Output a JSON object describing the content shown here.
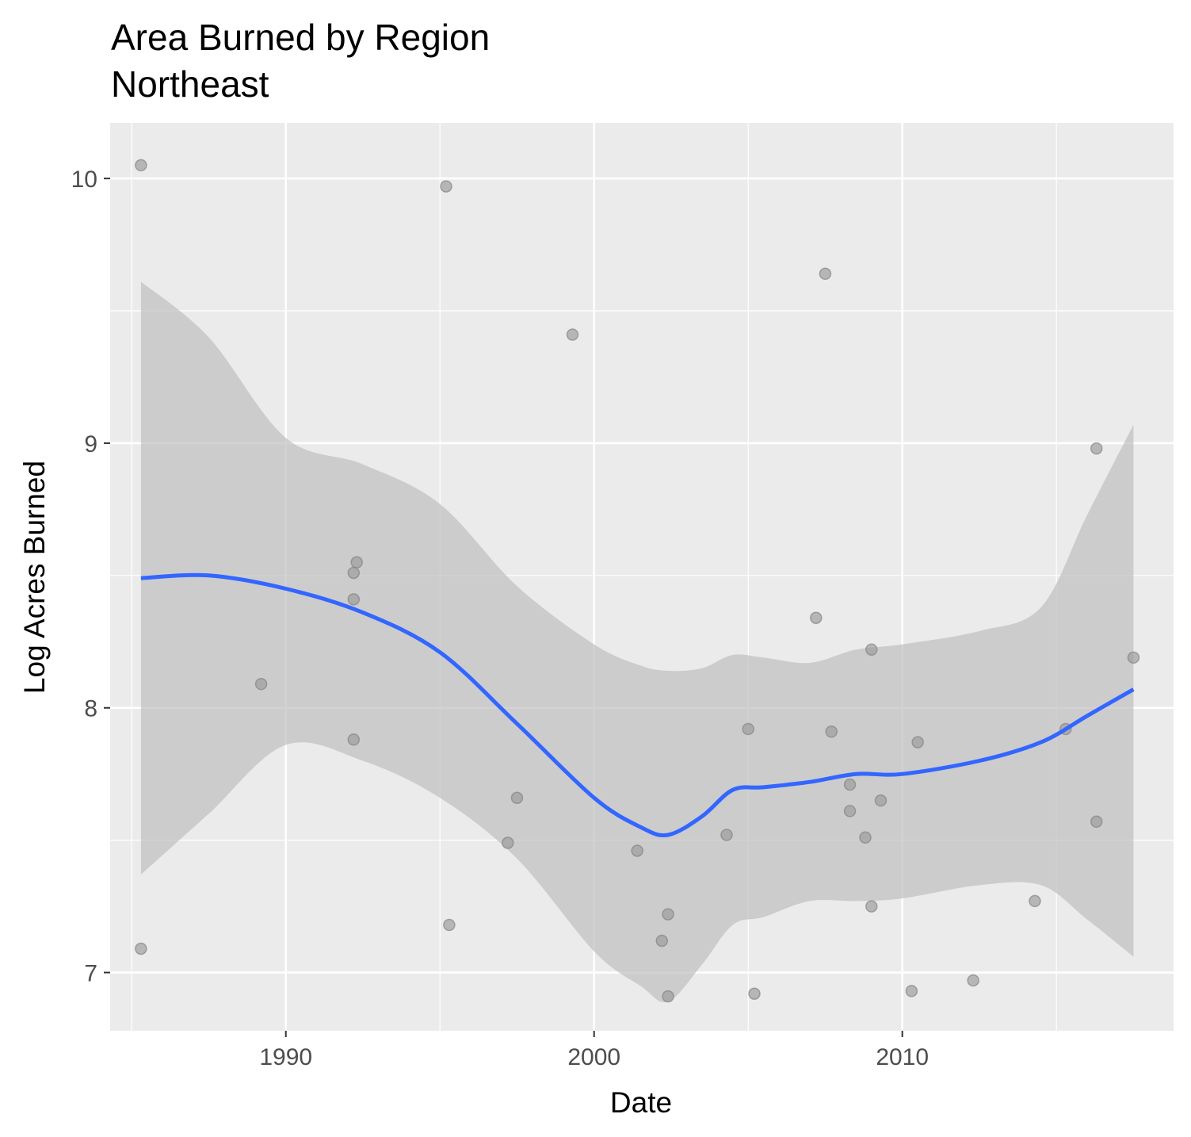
{
  "chart_data": {
    "type": "scatter",
    "title": "Area Burned by Region",
    "subtitle": "Northeast",
    "xlabel": "Date",
    "ylabel": "Log Acres Burned",
    "xlim": [
      1984.3,
      2018.8
    ],
    "ylim": [
      6.78,
      10.21
    ],
    "x_ticks": [
      1990,
      2000,
      2010
    ],
    "y_ticks": [
      7,
      8,
      9,
      10
    ],
    "grid": true,
    "colors": {
      "panel": "#ebebeb",
      "grid_major": "#ffffff",
      "points": "#999999",
      "smooth_line": "#3366ff",
      "ribbon": "#bdbdbd"
    },
    "points": [
      {
        "x": 1985.3,
        "y": 10.05
      },
      {
        "x": 1985.3,
        "y": 7.09
      },
      {
        "x": 1989.2,
        "y": 8.09
      },
      {
        "x": 1992.3,
        "y": 8.55
      },
      {
        "x": 1992.2,
        "y": 8.51
      },
      {
        "x": 1992.2,
        "y": 8.41
      },
      {
        "x": 1992.2,
        "y": 7.88
      },
      {
        "x": 1995.2,
        "y": 9.97
      },
      {
        "x": 1995.3,
        "y": 7.18
      },
      {
        "x": 1997.2,
        "y": 7.49
      },
      {
        "x": 1997.5,
        "y": 7.66
      },
      {
        "x": 1999.3,
        "y": 9.41
      },
      {
        "x": 2001.4,
        "y": 7.46
      },
      {
        "x": 2002.2,
        "y": 7.12
      },
      {
        "x": 2002.4,
        "y": 7.22
      },
      {
        "x": 2002.4,
        "y": 6.91
      },
      {
        "x": 2004.3,
        "y": 7.52
      },
      {
        "x": 2005.0,
        "y": 7.92
      },
      {
        "x": 2005.2,
        "y": 6.92
      },
      {
        "x": 2007.2,
        "y": 8.34
      },
      {
        "x": 2007.5,
        "y": 9.64
      },
      {
        "x": 2007.7,
        "y": 7.91
      },
      {
        "x": 2008.3,
        "y": 7.71
      },
      {
        "x": 2008.3,
        "y": 7.61
      },
      {
        "x": 2008.8,
        "y": 7.51
      },
      {
        "x": 2009.0,
        "y": 8.22
      },
      {
        "x": 2009.0,
        "y": 7.25
      },
      {
        "x": 2009.3,
        "y": 7.65
      },
      {
        "x": 2010.3,
        "y": 6.93
      },
      {
        "x": 2010.5,
        "y": 7.87
      },
      {
        "x": 2012.3,
        "y": 6.97
      },
      {
        "x": 2014.3,
        "y": 7.27
      },
      {
        "x": 2015.3,
        "y": 7.92
      },
      {
        "x": 2016.3,
        "y": 8.98
      },
      {
        "x": 2016.3,
        "y": 7.57
      },
      {
        "x": 2017.5,
        "y": 8.19
      }
    ],
    "smooth": {
      "method": "loess",
      "fit": [
        {
          "x": 1985.3,
          "y": 8.49,
          "ymin": 7.37,
          "ymax": 9.61
        },
        {
          "x": 1987.5,
          "y": 8.5,
          "ymin": 7.6,
          "ymax": 9.4
        },
        {
          "x": 1990.0,
          "y": 8.45,
          "ymin": 7.86,
          "ymax": 9.02
        },
        {
          "x": 1992.5,
          "y": 8.36,
          "ymin": 7.8,
          "ymax": 8.92
        },
        {
          "x": 1995.0,
          "y": 8.21,
          "ymin": 7.66,
          "ymax": 8.77
        },
        {
          "x": 1997.5,
          "y": 7.94,
          "ymin": 7.43,
          "ymax": 8.46
        },
        {
          "x": 2000.0,
          "y": 7.66,
          "ymin": 7.08,
          "ymax": 8.24
        },
        {
          "x": 2001.5,
          "y": 7.55,
          "ymin": 6.95,
          "ymax": 8.16
        },
        {
          "x": 2002.4,
          "y": 7.52,
          "ymin": 6.89,
          "ymax": 8.14
        },
        {
          "x": 2003.5,
          "y": 7.59,
          "ymin": 7.03,
          "ymax": 8.15
        },
        {
          "x": 2004.5,
          "y": 7.69,
          "ymin": 7.18,
          "ymax": 8.2
        },
        {
          "x": 2005.5,
          "y": 7.7,
          "ymin": 7.21,
          "ymax": 8.19
        },
        {
          "x": 2007.0,
          "y": 7.72,
          "ymin": 7.27,
          "ymax": 8.17
        },
        {
          "x": 2008.5,
          "y": 7.75,
          "ymin": 7.27,
          "ymax": 8.22
        },
        {
          "x": 2010.0,
          "y": 7.75,
          "ymin": 7.28,
          "ymax": 8.24
        },
        {
          "x": 2012.5,
          "y": 7.8,
          "ymin": 7.33,
          "ymax": 8.29
        },
        {
          "x": 2014.5,
          "y": 7.87,
          "ymin": 7.33,
          "ymax": 8.38
        },
        {
          "x": 2016.0,
          "y": 7.97,
          "ymin": 7.2,
          "ymax": 8.73
        },
        {
          "x": 2017.5,
          "y": 8.07,
          "ymin": 7.06,
          "ymax": 9.07
        }
      ]
    }
  }
}
